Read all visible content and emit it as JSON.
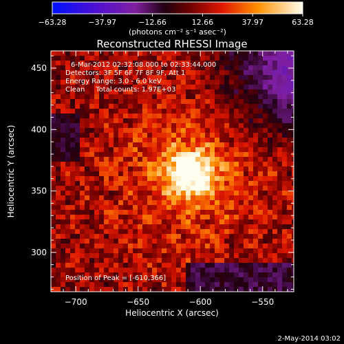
{
  "chart_data": {
    "type": "heatmap",
    "title": "Reconstructed RHESSI Image",
    "xlabel": "Heliocentric X (arcsec)",
    "ylabel": "Heliocentric Y (arcsec)",
    "xlim": [
      -720,
      -525
    ],
    "ylim": [
      268,
      464
    ],
    "xticks": [
      -700,
      -650,
      -600,
      -550
    ],
    "yticks": [
      300,
      350,
      400,
      450
    ],
    "xtick_labels": [
      "−700",
      "−650",
      "−600",
      "−550"
    ],
    "ytick_labels": [
      "300",
      "350",
      "400",
      "450"
    ],
    "colorbar": {
      "range": [
        -63.28,
        63.28
      ],
      "ticks": [
        -63.28,
        -37.97,
        -12.66,
        12.66,
        37.97,
        63.28
      ],
      "tick_labels": [
        "−63.28",
        "−37.97",
        "−12.66",
        "12.66",
        "37.97",
        "63.28"
      ],
      "units": "(photons cm⁻² s⁻¹ asec⁻²)"
    },
    "annotations": [
      "6-Mar-2012 02:32:08.000 to 02:33:44.000",
      "Detectors: 3F 5F 6F 7F 8F 9F, Att 1",
      "Energy Range: 3.0 - 6.0 keV",
      "Clean     Total counts: 1.97E+03"
    ],
    "peak_label": "Position of Peak = [-610,366]",
    "peak": {
      "x": -610,
      "y": 366
    },
    "footer": "2-May-2014 03:02"
  }
}
